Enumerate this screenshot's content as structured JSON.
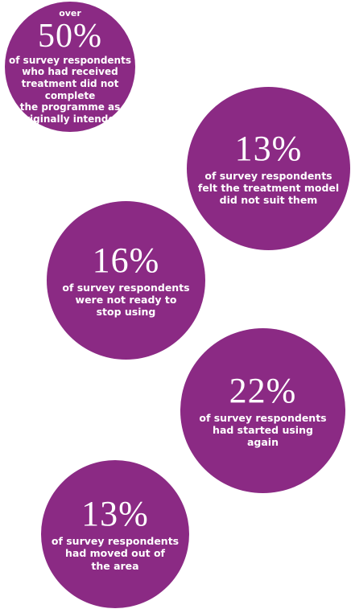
{
  "colors": {
    "bubble": "#8b2a84",
    "text": "#ffffff",
    "background": "#ffffff"
  },
  "stats": [
    {
      "prefix": "over",
      "value": "50%",
      "lines": [
        "of survey respondents",
        "who had received",
        "treatment did not complete",
        "the programme as",
        "originally intended"
      ]
    },
    {
      "prefix": "",
      "value": "13%",
      "lines": [
        "of survey respondents",
        "felt the treatment model",
        "did not suit them"
      ]
    },
    {
      "prefix": "",
      "value": "16%",
      "lines": [
        "of survey respondents",
        "were not ready to",
        "stop using"
      ]
    },
    {
      "prefix": "",
      "value": "22%",
      "lines": [
        "of survey respondents",
        "had started using",
        "again"
      ]
    },
    {
      "prefix": "",
      "value": "13%",
      "lines": [
        "of survey respondents",
        "had moved out of",
        "the area"
      ]
    }
  ]
}
